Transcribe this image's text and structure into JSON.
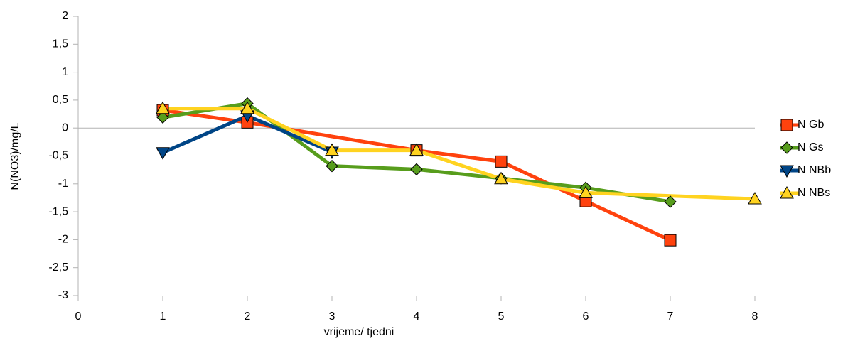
{
  "chart_data": {
    "type": "line",
    "x_label": "vrijeme/ tjedni",
    "y_label": "N(NO3)/mg/L",
    "xlim": [
      0,
      8
    ],
    "xticks": [
      0,
      1,
      2,
      3,
      4,
      5,
      6,
      7,
      8
    ],
    "ylim": [
      -3,
      2
    ],
    "yticks": [
      -3,
      {
        "value": -2.5,
        "label": "-2,5"
      },
      -2,
      {
        "value": -1.5,
        "label": "-1,5"
      },
      -1,
      {
        "value": -0.5,
        "label": "-0,5"
      },
      0,
      {
        "value": 0.5,
        "label": "0,5"
      },
      1,
      {
        "value": 1.5,
        "label": "1,5"
      },
      2
    ],
    "legend": "right",
    "series": [
      {
        "name": "N Gb",
        "color": "#ff420e",
        "marker": "square",
        "x": [
          1,
          2,
          4,
          5,
          6,
          7
        ],
        "values": [
          0.32,
          0.1,
          -0.4,
          -0.6,
          -1.31,
          -2.01
        ]
      },
      {
        "name": "N Gs",
        "color": "#579d1c",
        "marker": "diamond",
        "x": [
          1,
          2,
          3,
          4,
          5,
          6,
          7
        ],
        "values": [
          0.19,
          0.44,
          -0.68,
          -0.74,
          -0.9,
          -1.07,
          -1.32
        ]
      },
      {
        "name": "N NBb",
        "color": "#004586",
        "marker": "triangle-down",
        "x": [
          1,
          2,
          3
        ],
        "values": [
          -0.44,
          0.22,
          -0.43
        ]
      },
      {
        "name": "N NBs",
        "color": "#ffd320",
        "marker": "triangle-up",
        "x": [
          1,
          2,
          3,
          4,
          5,
          6,
          8
        ],
        "values": [
          0.35,
          0.35,
          -0.4,
          -0.4,
          -0.91,
          -1.16,
          -1.27
        ]
      }
    ]
  }
}
